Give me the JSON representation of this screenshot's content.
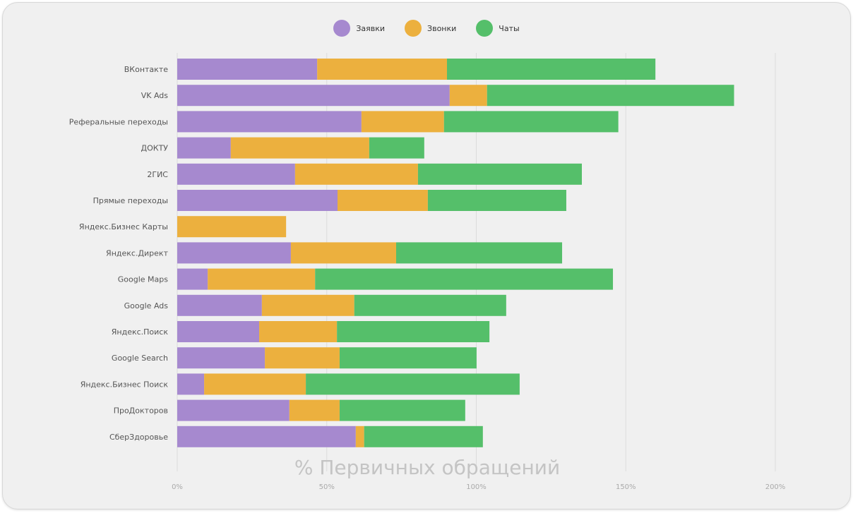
{
  "legend": [
    {
      "label": "Заявки",
      "color": "#a689cf"
    },
    {
      "label": "Звонки",
      "color": "#ecb03e"
    },
    {
      "label": "Чаты",
      "color": "#55bf6a"
    }
  ],
  "chart_data": {
    "type": "bar",
    "orientation": "horizontal",
    "stacked": true,
    "xlabel": "% Первичных обращений",
    "xlim": [
      0,
      200
    ],
    "xticks": [
      "0%",
      "50%",
      "100%",
      "150%",
      "200%"
    ],
    "grid": "vertical",
    "legend_position": "top",
    "categories": [
      "ВКонтакте",
      "VK Ads",
      "Реферальные переходы",
      "ДОКТУ",
      "2ГИС",
      "Прямые переходы",
      "Яндекс.Бизнес Карты",
      "Яндекс.Директ",
      "Google Maps",
      "Google Ads",
      "Яндекс.Поиск",
      "Google Search",
      "Яндекс.Бизнес Поиск",
      "ПроДокторов",
      "СберЗдоровье"
    ],
    "series": [
      {
        "name": "Заявки",
        "color": "#a689cf",
        "values": [
          46.8,
          91.1,
          61.6,
          17.9,
          39.4,
          53.6,
          0,
          38.0,
          10.2,
          28.3,
          27.4,
          29.3,
          9.0,
          37.5,
          59.7
        ]
      },
      {
        "name": "Звонки",
        "color": "#ecb03e",
        "values": [
          43.4,
          12.5,
          27.6,
          46.3,
          41.1,
          30.2,
          36.4,
          35.2,
          35.9,
          30.9,
          26.0,
          25.0,
          34.0,
          16.8,
          2.8
        ]
      },
      {
        "name": "Чаты",
        "color": "#55bf6a",
        "values": [
          69.7,
          82.6,
          58.3,
          18.4,
          54.8,
          46.3,
          0,
          55.5,
          99.6,
          50.8,
          51.0,
          45.8,
          71.5,
          42.0,
          39.7
        ]
      }
    ]
  }
}
